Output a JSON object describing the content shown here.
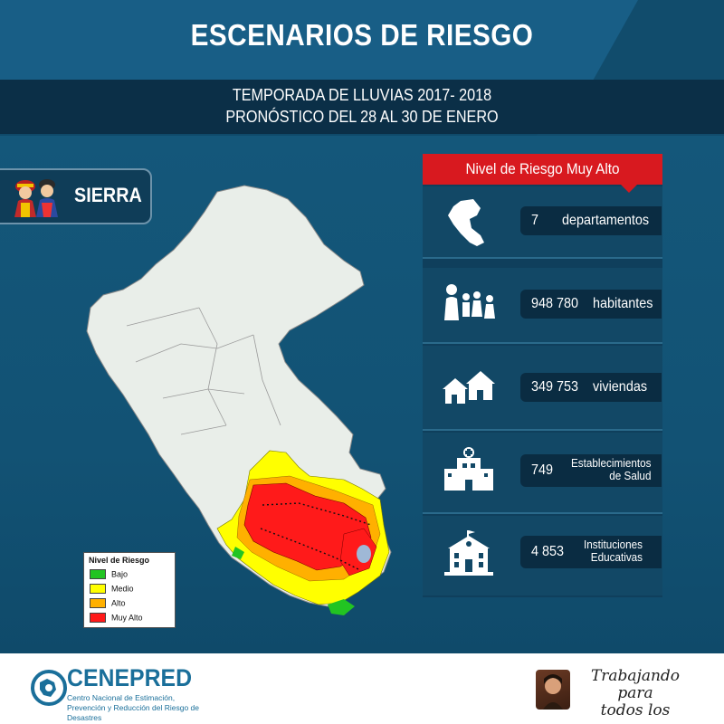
{
  "header": {
    "title": "ESCENARIOS DE RIESGO",
    "subtitle_line1": "TEMPORADA DE LLUVIAS 2017- 2018",
    "subtitle_line2": "PRONÓSTICO DEL 28 AL 30 DE ENERO"
  },
  "region": {
    "label": "SIERRA",
    "icon": "andean-couple-icon"
  },
  "legend": {
    "title": "Nivel de Riesgo",
    "items": [
      {
        "label": "Bajo",
        "color": "#22c422"
      },
      {
        "label": "Medio",
        "color": "#ffff00"
      },
      {
        "label": "Alto",
        "color": "#ffb000"
      },
      {
        "label": "Muy Alto",
        "color": "#ff1a1a"
      }
    ]
  },
  "panel": {
    "header": "Nivel de Riesgo Muy Alto",
    "accent": "#d8191f",
    "stats": [
      {
        "icon": "peru-map-icon",
        "number": "7",
        "label": "departamentos"
      },
      {
        "icon": "people-icon",
        "number": "948 780",
        "label": "habitantes"
      },
      {
        "icon": "houses-icon",
        "number": "349 753",
        "label": "viviendas"
      },
      {
        "icon": "hospital-icon",
        "number": "749",
        "label_line1": "Establecimientos",
        "label_line2": "de Salud"
      },
      {
        "icon": "school-icon",
        "number": "4 853",
        "label_line1": "Instituciones",
        "label_line2": "Educativas"
      }
    ]
  },
  "footer": {
    "org_name": "CENEPRED",
    "org_desc": "Centro Nacional de Estimación, Prevención y Reducción del Riesgo de Desastres",
    "gov_slogan_line1": "Trabajando para",
    "gov_slogan_line2": "todos los peruanos"
  },
  "colors": {
    "background": "#0f4a6a",
    "title_band": "#185e86",
    "subtitle_band": "#0b2f47"
  }
}
